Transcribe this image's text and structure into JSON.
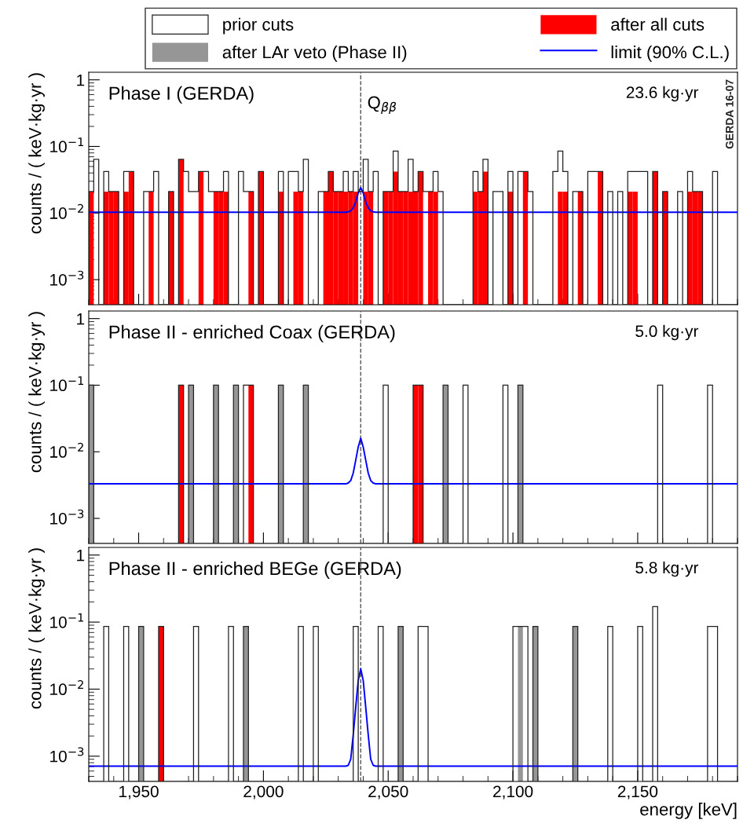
{
  "chart_data": [
    {
      "type": "histogram",
      "title": "Phase I (GERDA)",
      "subtitle": "23.6 kg·yr",
      "ylabel": "counts / ( keV·kg·yr )",
      "annotations": [
        "GERDA 16-07"
      ],
      "legend": "top",
      "log": "y",
      "tick_labels": "y",
      "xlim": [
        1930,
        2190
      ],
      "ylim": [
        0.00042,
        1.3
      ],
      "xticks": [
        {
          "value": 1950,
          "label": null
        },
        {
          "value": 2000,
          "label": null
        },
        {
          "value": 2050,
          "label": null
        },
        {
          "value": 2100,
          "label": null
        },
        {
          "value": 2150,
          "label": null
        }
      ],
      "yticks": [
        {
          "value": 1,
          "label": "1"
        },
        {
          "value": 0.1,
          "label": "10$^{−1}$"
        },
        {
          "value": 0.01,
          "label": "10$^{−2}$"
        },
        {
          "value": 0.001,
          "label": "10$^{−3}$"
        }
      ],
      "ref_lines": [
        {
          "axis": "x",
          "value": 2039,
          "label": "Q$_{ββ}$",
          "color": "#555555",
          "line_style": "dashed"
        }
      ],
      "bins": [
        1930,
        1932,
        1934,
        1936,
        1938,
        1940,
        1942,
        1944,
        1946,
        1948,
        1950,
        1952,
        1954,
        1956,
        1958,
        1960,
        1962,
        1964,
        1966,
        1968,
        1970,
        1972,
        1974,
        1976,
        1978,
        1980,
        1982,
        1984,
        1986,
        1988,
        1990,
        1992,
        1994,
        1996,
        1998,
        2000,
        2002,
        2004,
        2006,
        2008,
        2010,
        2012,
        2014,
        2016,
        2018,
        2020,
        2022,
        2024,
        2026,
        2028,
        2030,
        2032,
        2034,
        2036,
        2038,
        2040,
        2042,
        2044,
        2046,
        2048,
        2050,
        2052,
        2054,
        2056,
        2058,
        2060,
        2062,
        2064,
        2066,
        2068,
        2070,
        2072,
        2074,
        2076,
        2078,
        2080,
        2082,
        2084,
        2086,
        2088,
        2090,
        2092,
        2094,
        2096,
        2098,
        2100,
        2102,
        2104,
        2106,
        2108,
        2110,
        2112,
        2114,
        2116,
        2118,
        2120,
        2122,
        2124,
        2126,
        2128,
        2130,
        2132,
        2134,
        2136,
        2138,
        2140,
        2142,
        2144,
        2146,
        2148,
        2150,
        2152,
        2154,
        2156,
        2158,
        2160,
        2162,
        2164,
        2166,
        2168,
        2170,
        2172,
        2174,
        2176,
        2178,
        2180,
        2182,
        2184,
        2186,
        2188,
        2190
      ],
      "series": [
        {
          "name": "prior cuts",
          "line_style": "solid",
          "color": "#222222",
          "values": [
            0.021,
            0.064,
            null,
            0.042,
            0.021,
            0.021,
            null,
            0.042,
            0.042,
            null,
            null,
            0.021,
            0.021,
            0.042,
            null,
            null,
            0.021,
            null,
            0.064,
            0.042,
            0.021,
            0.021,
            0.042,
            0.042,
            0.021,
            0.021,
            0.021,
            0.042,
            null,
            null,
            0.042,
            0.021,
            0.021,
            null,
            0.042,
            null,
            null,
            null,
            0.042,
            null,
            0.042,
            0.042,
            0.021,
            0.064,
            null,
            null,
            0.021,
            0.021,
            0.042,
            0.021,
            0.021,
            0.042,
            0.021,
            0.042,
            0.021,
            0.064,
            0.021,
            0.042,
            null,
            0.021,
            0.021,
            0.085,
            0.021,
            0.021,
            0.064,
            0.021,
            0.042,
            0.021,
            0.021,
            0.042,
            0.021,
            null,
            null,
            null,
            null,
            null,
            null,
            0.042,
            0.021,
            0.064,
            null,
            0.021,
            0.021,
            null,
            0.042,
            null,
            0.042,
            0.042,
            0.021,
            null,
            null,
            null,
            null,
            0.042,
            0.085,
            0.042,
            null,
            0.021,
            0.021,
            null,
            0.042,
            0.042,
            0.042,
            null,
            0.021,
            null,
            0.021,
            null,
            0.042,
            0.042,
            0.042,
            0.042,
            null,
            0.042,
            null,
            0.021,
            null,
            null,
            0.021,
            null,
            0.042,
            0.021,
            0.021,
            null,
            null,
            0.042,
            null,
            null,
            null,
            null
          ]
        },
        {
          "name": "after all cuts",
          "color": "#ff0000",
          "values": [
            0.021,
            null,
            null,
            0.021,
            0.021,
            0.021,
            null,
            0.021,
            0.042,
            null,
            null,
            null,
            0.021,
            null,
            null,
            null,
            0.021,
            null,
            0.064,
            null,
            null,
            null,
            0.042,
            null,
            null,
            0.021,
            0.021,
            0.021,
            null,
            null,
            null,
            null,
            0.021,
            null,
            0.042,
            null,
            null,
            null,
            0.021,
            null,
            null,
            0.021,
            0.021,
            null,
            null,
            null,
            null,
            0.021,
            0.042,
            0.021,
            0.021,
            0.021,
            0.021,
            0.021,
            null,
            0.021,
            0.021,
            null,
            null,
            0.021,
            0.021,
            0.042,
            0.021,
            0.021,
            0.021,
            0.021,
            0.042,
            null,
            0.021,
            0.021,
            null,
            null,
            null,
            null,
            null,
            null,
            null,
            0.021,
            0.021,
            0.042,
            null,
            null,
            null,
            null,
            0.021,
            null,
            null,
            0.042,
            null,
            null,
            null,
            null,
            null,
            null,
            0.021,
            0.021,
            null,
            null,
            0.021,
            null,
            null,
            null,
            0.042,
            null,
            null,
            null,
            null,
            null,
            0.021,
            0.021,
            null,
            null,
            null,
            0.042,
            null,
            0.021,
            null,
            null,
            null,
            null,
            0.021,
            0.021,
            0.021,
            null,
            null,
            null,
            null,
            null,
            null,
            null
          ]
        },
        {
          "name": "limit (90% C.L.)",
          "type": "line",
          "color": "#0000ff",
          "x": [
            1930,
            2033,
            2034,
            2035,
            2036,
            2037,
            2038,
            2039,
            2040,
            2041,
            2042,
            2043,
            2044,
            2045,
            2190
          ],
          "values": [
            0.0103,
            0.0103,
            0.0104,
            0.0108,
            0.012,
            0.0148,
            0.02,
            0.024,
            0.02,
            0.0148,
            0.012,
            0.0108,
            0.0104,
            0.0103,
            0.0103
          ]
        }
      ]
    },
    {
      "type": "histogram",
      "title": "Phase II - enriched Coax (GERDA)",
      "subtitle": "5.0 kg·yr",
      "ylabel": "counts / ( keV·kg·yr )",
      "log": "y",
      "tick_labels": "y",
      "xlim": [
        1930,
        2190
      ],
      "ylim": [
        0.00042,
        1.3
      ],
      "xticks": [
        {
          "value": 1950,
          "label": null
        },
        {
          "value": 2000,
          "label": null
        },
        {
          "value": 2050,
          "label": null
        },
        {
          "value": 2100,
          "label": null
        },
        {
          "value": 2150,
          "label": null
        }
      ],
      "yticks": [
        {
          "value": 1,
          "label": "1"
        },
        {
          "value": 0.1,
          "label": "10$^{−1}$"
        },
        {
          "value": 0.01,
          "label": "10$^{−2}$"
        },
        {
          "value": 0.001,
          "label": "10$^{−3}$"
        }
      ],
      "ref_lines": [
        {
          "axis": "x",
          "value": 2039,
          "color": "#555555",
          "line_style": "dashed"
        }
      ],
      "bins": [
        1930,
        1932,
        1934,
        1936,
        1938,
        1940,
        1942,
        1944,
        1946,
        1948,
        1950,
        1952,
        1954,
        1956,
        1958,
        1960,
        1962,
        1964,
        1966,
        1968,
        1970,
        1972,
        1974,
        1976,
        1978,
        1980,
        1982,
        1984,
        1986,
        1988,
        1990,
        1992,
        1994,
        1996,
        1998,
        2000,
        2002,
        2004,
        2006,
        2008,
        2010,
        2012,
        2014,
        2016,
        2018,
        2020,
        2022,
        2024,
        2026,
        2028,
        2030,
        2032,
        2034,
        2036,
        2038,
        2040,
        2042,
        2044,
        2046,
        2048,
        2050,
        2052,
        2054,
        2056,
        2058,
        2060,
        2062,
        2064,
        2066,
        2068,
        2070,
        2072,
        2074,
        2076,
        2078,
        2080,
        2082,
        2084,
        2086,
        2088,
        2090,
        2092,
        2094,
        2096,
        2098,
        2100,
        2102,
        2104,
        2106,
        2108,
        2110,
        2112,
        2114,
        2116,
        2118,
        2120,
        2122,
        2124,
        2126,
        2128,
        2130,
        2132,
        2134,
        2136,
        2138,
        2140,
        2142,
        2144,
        2146,
        2148,
        2150,
        2152,
        2154,
        2156,
        2158,
        2160,
        2162,
        2164,
        2166,
        2168,
        2170,
        2172,
        2174,
        2176,
        2178,
        2180,
        2182,
        2184,
        2186,
        2188,
        2190
      ],
      "series": [
        {
          "line_style": "solid",
          "color": "#222222",
          "values": [
            0.1,
            null,
            null,
            null,
            null,
            null,
            null,
            null,
            null,
            null,
            null,
            null,
            null,
            null,
            null,
            null,
            null,
            null,
            0.1,
            null,
            0.1,
            null,
            null,
            null,
            null,
            0.1,
            null,
            null,
            null,
            0.1,
            null,
            0.1,
            0.1,
            null,
            null,
            null,
            null,
            null,
            0.1,
            null,
            null,
            null,
            null,
            0.1,
            null,
            null,
            null,
            null,
            null,
            null,
            null,
            null,
            null,
            null,
            null,
            null,
            null,
            null,
            null,
            0.1,
            null,
            null,
            null,
            null,
            null,
            0.1,
            0.1,
            null,
            null,
            null,
            null,
            0.1,
            null,
            null,
            null,
            0.1,
            null,
            null,
            null,
            null,
            null,
            null,
            null,
            0.1,
            null,
            null,
            0.1,
            null,
            null,
            null,
            null,
            null,
            null,
            null,
            null,
            null,
            null,
            null,
            null,
            null,
            null,
            null,
            null,
            null,
            null,
            null,
            null,
            null,
            null,
            null,
            null,
            null,
            null,
            null,
            0.1,
            null,
            null,
            null,
            null,
            null,
            null,
            null,
            null,
            null,
            0.1,
            null,
            null,
            null,
            null,
            null
          ]
        },
        {
          "name": "after LAr veto (Phase II)",
          "color": "#969696",
          "values": [
            0.1,
            null,
            null,
            null,
            null,
            null,
            null,
            null,
            null,
            null,
            null,
            null,
            null,
            null,
            null,
            null,
            null,
            null,
            null,
            null,
            0.1,
            null,
            null,
            null,
            null,
            0.1,
            null,
            null,
            null,
            0.1,
            null,
            null,
            null,
            null,
            null,
            null,
            null,
            null,
            0.1,
            null,
            null,
            null,
            null,
            0.1,
            null,
            null,
            null,
            null,
            null,
            null,
            null,
            null,
            null,
            null,
            null,
            null,
            null,
            null,
            null,
            null,
            null,
            null,
            null,
            null,
            null,
            null,
            null,
            null,
            null,
            null,
            null,
            0.1,
            null,
            null,
            null,
            null,
            null,
            null,
            null,
            null,
            null,
            null,
            null,
            null,
            null,
            null,
            0.1,
            null,
            null,
            null,
            null,
            null,
            null,
            null,
            null,
            null,
            null,
            null,
            null,
            null,
            null,
            null,
            null,
            null,
            null,
            null,
            null,
            null,
            null,
            null,
            null,
            null,
            null,
            null,
            null,
            null,
            null,
            null,
            null,
            null,
            null,
            null,
            null,
            null,
            null,
            null,
            null,
            null,
            null,
            null
          ]
        },
        {
          "color": "#ff0000",
          "values": [
            null,
            null,
            null,
            null,
            null,
            null,
            null,
            null,
            null,
            null,
            null,
            null,
            null,
            null,
            null,
            null,
            null,
            null,
            0.1,
            null,
            null,
            null,
            null,
            null,
            null,
            null,
            null,
            null,
            null,
            null,
            null,
            null,
            0.1,
            null,
            null,
            null,
            null,
            null,
            null,
            null,
            null,
            null,
            null,
            null,
            null,
            null,
            null,
            null,
            null,
            null,
            null,
            null,
            null,
            null,
            null,
            null,
            null,
            null,
            null,
            null,
            null,
            null,
            null,
            null,
            null,
            0.1,
            0.1,
            null,
            null,
            null,
            null,
            null,
            null,
            null,
            null,
            null,
            null,
            null,
            null,
            null,
            null,
            null,
            null,
            null,
            null,
            null,
            null,
            null,
            null,
            null,
            null,
            null,
            null,
            null,
            null,
            null,
            null,
            null,
            null,
            null,
            null,
            null,
            null,
            null,
            null,
            null,
            null,
            null,
            null,
            null,
            null,
            null,
            null,
            null,
            null,
            null,
            null,
            null,
            null,
            null,
            null,
            null,
            null,
            null,
            null,
            null,
            null,
            null,
            null,
            null
          ]
        },
        {
          "type": "line",
          "color": "#0000ff",
          "x": [
            1930,
            2033,
            2034,
            2035,
            2036,
            2037,
            2038,
            2039,
            2040,
            2041,
            2042,
            2043,
            2044,
            2045,
            2190
          ],
          "values": [
            0.0033,
            0.0033,
            0.0034,
            0.0037,
            0.0048,
            0.0075,
            0.0118,
            0.016,
            0.0118,
            0.0075,
            0.0048,
            0.0037,
            0.0034,
            0.0033,
            0.0033
          ]
        }
      ]
    },
    {
      "type": "histogram",
      "title": "Phase II - enriched BEGe (GERDA)",
      "subtitle": "5.8 kg·yr",
      "ylabel": "counts / ( keV·kg·yr )",
      "xlabel": "energy [keV]",
      "log": "y",
      "xlim": [
        1930,
        2190
      ],
      "ylim": [
        0.00042,
        1.3
      ],
      "xticks": [
        {
          "value": 1950,
          "label": "1,950"
        },
        {
          "value": 2000,
          "label": "2,000"
        },
        {
          "value": 2050,
          "label": "2,050"
        },
        {
          "value": 2100,
          "label": "2,100"
        },
        {
          "value": 2150,
          "label": "2,150"
        }
      ],
      "yticks": [
        {
          "value": 1,
          "label": "1"
        },
        {
          "value": 0.1,
          "label": "10$^{−1}$"
        },
        {
          "value": 0.01,
          "label": "10$^{−2}$"
        },
        {
          "value": 0.001,
          "label": "10$^{−3}$"
        }
      ],
      "ref_lines": [
        {
          "axis": "x",
          "value": 2039,
          "color": "#555555",
          "line_style": "dashed"
        }
      ],
      "bins": [
        1930,
        1932,
        1934,
        1936,
        1938,
        1940,
        1942,
        1944,
        1946,
        1948,
        1950,
        1952,
        1954,
        1956,
        1958,
        1960,
        1962,
        1964,
        1966,
        1968,
        1970,
        1972,
        1974,
        1976,
        1978,
        1980,
        1982,
        1984,
        1986,
        1988,
        1990,
        1992,
        1994,
        1996,
        1998,
        2000,
        2002,
        2004,
        2006,
        2008,
        2010,
        2012,
        2014,
        2016,
        2018,
        2020,
        2022,
        2024,
        2026,
        2028,
        2030,
        2032,
        2034,
        2036,
        2038,
        2040,
        2042,
        2044,
        2046,
        2048,
        2050,
        2052,
        2054,
        2056,
        2058,
        2060,
        2062,
        2064,
        2066,
        2068,
        2070,
        2072,
        2074,
        2076,
        2078,
        2080,
        2082,
        2084,
        2086,
        2088,
        2090,
        2092,
        2094,
        2096,
        2098,
        2100,
        2102,
        2104,
        2106,
        2108,
        2110,
        2112,
        2114,
        2116,
        2118,
        2120,
        2122,
        2124,
        2126,
        2128,
        2130,
        2132,
        2134,
        2136,
        2138,
        2140,
        2142,
        2144,
        2146,
        2148,
        2150,
        2152,
        2154,
        2156,
        2158,
        2160,
        2162,
        2164,
        2166,
        2168,
        2170,
        2172,
        2174,
        2176,
        2178,
        2180,
        2182,
        2184,
        2186,
        2188,
        2190
      ],
      "series": [
        {
          "line_style": "solid",
          "color": "#222222",
          "values": [
            null,
            null,
            null,
            0.086,
            null,
            null,
            null,
            0.086,
            null,
            null,
            0.086,
            null,
            null,
            null,
            0.086,
            null,
            null,
            null,
            null,
            null,
            null,
            0.086,
            null,
            null,
            null,
            null,
            null,
            null,
            0.086,
            null,
            null,
            0.086,
            null,
            null,
            null,
            null,
            null,
            null,
            null,
            null,
            null,
            null,
            0.086,
            null,
            null,
            0.086,
            null,
            null,
            null,
            null,
            null,
            null,
            null,
            0.086,
            null,
            null,
            null,
            null,
            0.086,
            null,
            null,
            null,
            0.086,
            null,
            null,
            null,
            0.086,
            0.086,
            null,
            null,
            null,
            null,
            null,
            null,
            null,
            null,
            null,
            null,
            null,
            null,
            null,
            null,
            null,
            null,
            null,
            0.086,
            0.086,
            0.086,
            null,
            0.086,
            null,
            null,
            null,
            null,
            null,
            null,
            null,
            0.086,
            null,
            null,
            null,
            null,
            null,
            null,
            0.086,
            null,
            null,
            null,
            null,
            null,
            0.086,
            null,
            null,
            0.17,
            null,
            null,
            null,
            null,
            null,
            null,
            null,
            null,
            null,
            null,
            0.086,
            0.086,
            null,
            null,
            null,
            null
          ]
        },
        {
          "color": "#969696",
          "values": [
            null,
            null,
            null,
            null,
            null,
            null,
            null,
            null,
            null,
            null,
            0.086,
            null,
            null,
            null,
            null,
            null,
            null,
            null,
            null,
            null,
            null,
            null,
            null,
            null,
            null,
            null,
            null,
            null,
            null,
            null,
            null,
            0.086,
            null,
            null,
            null,
            null,
            null,
            null,
            null,
            null,
            null,
            null,
            null,
            null,
            null,
            null,
            null,
            null,
            null,
            null,
            null,
            null,
            null,
            null,
            null,
            null,
            null,
            null,
            null,
            null,
            null,
            null,
            0.086,
            null,
            null,
            null,
            null,
            null,
            null,
            null,
            null,
            null,
            null,
            null,
            null,
            null,
            null,
            null,
            null,
            null,
            null,
            null,
            null,
            null,
            null,
            null,
            0.086,
            null,
            null,
            0.086,
            null,
            null,
            null,
            null,
            null,
            null,
            null,
            0.086,
            null,
            null,
            null,
            null,
            null,
            null,
            null,
            null,
            null,
            null,
            null,
            null,
            null,
            null,
            null,
            null,
            null,
            null,
            null,
            null,
            null,
            null,
            null,
            null,
            null,
            null,
            null,
            null,
            null,
            null,
            null,
            null
          ]
        },
        {
          "color": "#ff0000",
          "values": [
            null,
            null,
            null,
            null,
            null,
            null,
            null,
            null,
            null,
            null,
            null,
            null,
            null,
            null,
            0.086,
            null,
            null,
            null,
            null,
            null,
            null,
            null,
            null,
            null,
            null,
            null,
            null,
            null,
            null,
            null,
            null,
            null,
            null,
            null,
            null,
            null,
            null,
            null,
            null,
            null,
            null,
            null,
            null,
            null,
            null,
            null,
            null,
            null,
            null,
            null,
            null,
            null,
            null,
            null,
            null,
            null,
            null,
            null,
            null,
            null,
            null,
            null,
            null,
            null,
            null,
            null,
            null,
            null,
            null,
            null,
            null,
            null,
            null,
            null,
            null,
            null,
            null,
            null,
            null,
            null,
            null,
            null,
            null,
            null,
            null,
            null,
            null,
            null,
            null,
            null,
            null,
            null,
            null,
            null,
            null,
            null,
            null,
            null,
            null,
            null,
            null,
            null,
            null,
            null,
            null,
            null,
            null,
            null,
            null,
            null,
            null,
            null,
            null,
            null,
            null,
            null,
            null,
            null,
            null,
            null,
            null,
            null,
            null,
            null,
            null,
            null,
            null,
            null,
            null,
            null
          ]
        },
        {
          "type": "line",
          "color": "#0000ff",
          "x": [
            1930,
            2033,
            2034,
            2035,
            2036,
            2037,
            2038,
            2039,
            2040,
            2041,
            2042,
            2043,
            2044,
            2045,
            2190
          ],
          "values": [
            0.00071,
            0.00071,
            0.00073,
            0.0009,
            0.0021,
            0.0054,
            0.0135,
            0.02,
            0.0135,
            0.0054,
            0.0021,
            0.0009,
            0.00073,
            0.00071,
            0.00071
          ]
        }
      ]
    }
  ]
}
